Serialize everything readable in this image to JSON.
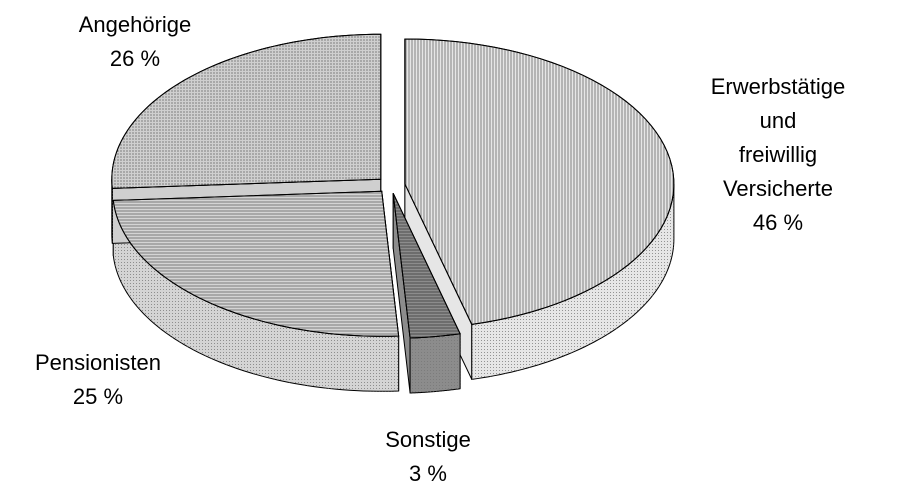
{
  "chart_data": {
    "type": "pie",
    "categories": [
      "Erwerbstätige und\nfreiwillig\nVersicherte",
      "Sonstige",
      "Pensionisten",
      "Angehörige"
    ],
    "values": [
      46,
      3,
      25,
      26
    ],
    "value_labels": [
      "46 %",
      "3 %",
      "25 %",
      "26 %"
    ],
    "colors": [
      "#e6e6e6",
      "#8c8c8c",
      "#d4d4d4",
      "#cfcfcf"
    ]
  }
}
